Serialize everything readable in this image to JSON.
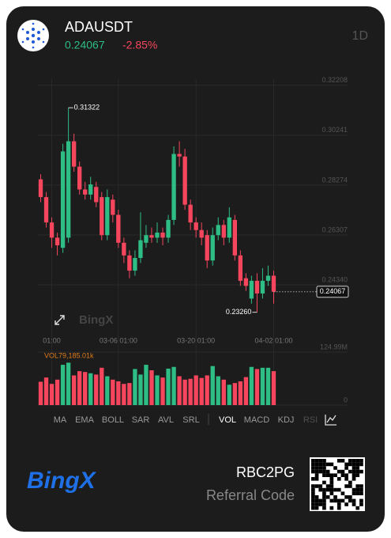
{
  "header": {
    "symbol": "ADAUSDT",
    "change": "-2.85%",
    "interval": "1D"
  },
  "chart_data": {
    "type": "candlestick",
    "categories": [
      null,
      null,
      "01:00",
      null,
      null,
      null,
      null,
      null,
      null,
      null,
      null,
      null,
      null,
      null,
      "03-06 01:00",
      null,
      null,
      null,
      null,
      null,
      null,
      null,
      null,
      null,
      null,
      null,
      null,
      null,
      "03-20 01:00",
      null,
      null,
      null,
      null,
      null,
      null,
      null,
      null,
      null,
      null,
      null,
      null,
      null,
      "04-02 01:00"
    ],
    "open": [
      0.285,
      0.278,
      0.268,
      0.262,
      0.258,
      0.262,
      0.3,
      0.29,
      0.281,
      0.279,
      0.282,
      0.278,
      0.263,
      0.277,
      0.271,
      0.26,
      0.255,
      0.249,
      0.254,
      0.26,
      0.263,
      0.262,
      0.264,
      0.262,
      0.269,
      0.295,
      0.294,
      0.275,
      0.268,
      0.265,
      0.263,
      0.253,
      0.263,
      0.267,
      0.262,
      0.269,
      0.255,
      0.246,
      0.238,
      0.245,
      0.24,
      0.245,
      0.247
    ],
    "high": [
      0.287,
      0.28,
      0.27,
      0.264,
      0.299,
      0.31322,
      0.303,
      0.292,
      0.284,
      0.286,
      0.284,
      0.28,
      0.281,
      0.279,
      0.273,
      0.262,
      0.257,
      0.257,
      0.272,
      0.267,
      0.266,
      0.268,
      0.266,
      0.271,
      0.298,
      0.3,
      0.297,
      0.277,
      0.27,
      0.268,
      0.265,
      0.266,
      0.27,
      0.269,
      0.274,
      0.271,
      0.257,
      0.248,
      0.247,
      0.248,
      0.25,
      0.251,
      0.249
    ],
    "low": [
      0.276,
      0.266,
      0.258,
      0.255,
      0.256,
      0.26,
      0.288,
      0.279,
      0.277,
      0.277,
      0.274,
      0.261,
      0.261,
      0.268,
      0.258,
      0.252,
      0.246,
      0.247,
      0.252,
      0.258,
      0.26,
      0.26,
      0.259,
      0.26,
      0.267,
      0.29,
      0.273,
      0.265,
      0.262,
      0.259,
      0.25,
      0.251,
      0.261,
      0.259,
      0.26,
      0.253,
      0.243,
      0.241,
      0.236,
      0.2326,
      0.238,
      0.243,
      0.236
    ],
    "close": [
      0.278,
      0.268,
      0.262,
      0.259,
      0.296,
      0.3,
      0.29,
      0.281,
      0.279,
      0.283,
      0.276,
      0.263,
      0.278,
      0.271,
      0.26,
      0.255,
      0.249,
      0.254,
      0.261,
      0.263,
      0.262,
      0.264,
      0.262,
      0.269,
      0.295,
      0.294,
      0.275,
      0.268,
      0.265,
      0.262,
      0.253,
      0.263,
      0.267,
      0.262,
      0.27,
      0.255,
      0.245,
      0.243,
      0.245,
      0.24,
      0.245,
      0.247,
      0.24067
    ],
    "up_color": "#2ebd85",
    "down_color": "#f6465d",
    "ylim": [
      0.2247,
      0.3245
    ],
    "yticks": [
      0.32208,
      0.30241,
      0.28274,
      0.26307,
      {
        "value": 0.2434,
        "label": "0.24340"
      }
    ],
    "grid": true,
    "last_price": 0.24067,
    "annotations": [
      {
        "value": 0.31322,
        "label": "0.31322"
      },
      {
        "value": 0.2326,
        "label": "0.23260"
      }
    ],
    "watermark": "BingX",
    "volume": {
      "label": "VOL79,185.01k",
      "values": [
        55,
        65,
        50,
        60,
        95,
        100,
        70,
        80,
        78,
        75,
        72,
        88,
        68,
        60,
        56,
        50,
        52,
        85,
        72,
        95,
        82,
        70,
        65,
        86,
        90,
        68,
        60,
        62,
        70,
        64,
        70,
        92,
        68,
        60,
        48,
        52,
        56,
        66,
        90,
        85,
        88,
        88,
        80
      ],
      "ylim": [
        0,
        124.99
      ],
      "yticks": [
        {
          "value": 124.99,
          "label": "124.99M"
        },
        0
      ]
    },
    "indicators": [
      "MA",
      "EMA",
      "BOLL",
      "SAR",
      "AVL",
      "SRL",
      "VOL",
      "MACD",
      "KDJ",
      "RSI"
    ],
    "active_indicator": "VOL"
  },
  "footer": {
    "brand": "BingX",
    "code": "RBC2PG",
    "code_label": "Referral Code"
  }
}
